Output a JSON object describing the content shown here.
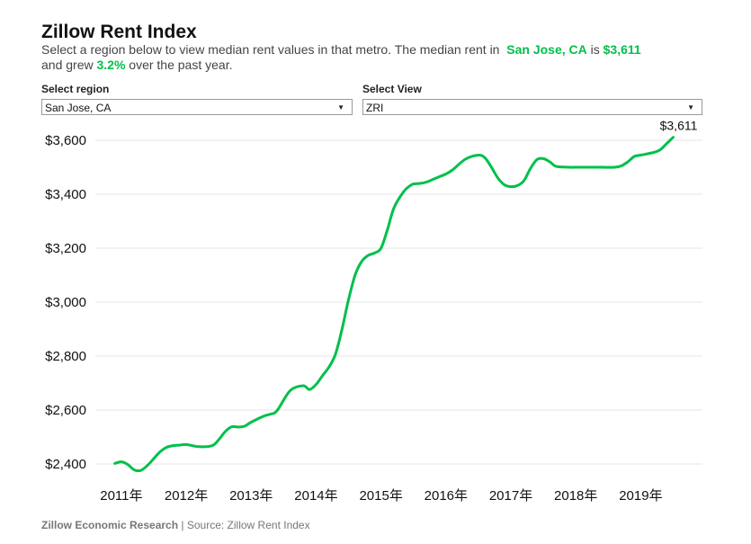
{
  "header": {
    "title": "Zillow Rent Index",
    "line1_prefix": "Select a region below to view median rent values in that metro. The median rent in",
    "region": "San Jose, CA",
    "is": "is",
    "rent": "$3,611",
    "line2_prefix": "and grew",
    "growth": "3.2%",
    "line2_suffix": "over the past year."
  },
  "controls": {
    "region_label": "Select region",
    "region_value": "San Jose, CA",
    "view_label": "Select View",
    "view_value": "ZRI"
  },
  "footer": {
    "org": "Zillow Economic Research",
    "separator": "|",
    "source": "Source: Zillow Rent Index"
  },
  "colors": {
    "line": "#00c04b",
    "grid": "#e6e6e6"
  },
  "chart_data": {
    "type": "line",
    "title": "Zillow Rent Index",
    "xlabel": "",
    "ylabel": "",
    "ylim": [
      2330,
      3660
    ],
    "xlim": [
      2010.6,
      2019.95
    ],
    "yticks": [
      2400,
      2600,
      2800,
      3000,
      3200,
      3400,
      3600
    ],
    "ytick_labels": [
      "$2,400",
      "$2,600",
      "$2,800",
      "$3,000",
      "$3,200",
      "$3,400",
      "$3,600"
    ],
    "xticks": [
      2011,
      2012,
      2013,
      2014,
      2015,
      2016,
      2017,
      2018,
      2019
    ],
    "xtick_labels": [
      "2011年",
      "2012年",
      "2013年",
      "2014年",
      "2015年",
      "2016年",
      "2017年",
      "2018年",
      "2019年"
    ],
    "last_label": "$3,611",
    "series": [
      {
        "name": "San Jose, CA",
        "x": [
          2010.9,
          2011.0,
          2011.1,
          2011.2,
          2011.3,
          2011.4,
          2011.5,
          2011.6,
          2011.7,
          2011.8,
          2011.9,
          2012.0,
          2012.2,
          2012.4,
          2012.5,
          2012.6,
          2012.7,
          2012.8,
          2012.9,
          2013.0,
          2013.2,
          2013.3,
          2013.4,
          2013.6,
          2013.8,
          2013.9,
          2014.0,
          2014.1,
          2014.2,
          2014.3,
          2014.4,
          2014.5,
          2014.6,
          2014.7,
          2014.8,
          2014.9,
          2015.0,
          2015.1,
          2015.2,
          2015.35,
          2015.45,
          2015.5,
          2015.6,
          2015.7,
          2015.8,
          2015.9,
          2016.0,
          2016.1,
          2016.3,
          2016.5,
          2016.6,
          2016.7,
          2016.8,
          2016.9,
          2017.0,
          2017.1,
          2017.2,
          2017.3,
          2017.4,
          2017.5,
          2017.6,
          2017.7,
          2017.9,
          2018.0,
          2018.2,
          2018.4,
          2018.6,
          2018.7,
          2018.8,
          2018.9,
          2019.0,
          2019.2,
          2019.3,
          2019.4,
          2019.5
        ],
        "values": [
          2402,
          2408,
          2398,
          2378,
          2376,
          2394,
          2420,
          2446,
          2462,
          2468,
          2470,
          2472,
          2464,
          2468,
          2490,
          2520,
          2538,
          2537,
          2540,
          2555,
          2578,
          2585,
          2598,
          2672,
          2690,
          2676,
          2695,
          2728,
          2760,
          2808,
          2900,
          3010,
          3100,
          3150,
          3173,
          3182,
          3200,
          3270,
          3350,
          3410,
          3432,
          3438,
          3440,
          3445,
          3455,
          3465,
          3475,
          3490,
          3530,
          3545,
          3535,
          3500,
          3460,
          3435,
          3428,
          3432,
          3450,
          3495,
          3528,
          3532,
          3520,
          3503,
          3500,
          3500,
          3500,
          3500,
          3500,
          3505,
          3520,
          3540,
          3545,
          3555,
          3565,
          3588,
          3611
        ]
      }
    ]
  }
}
